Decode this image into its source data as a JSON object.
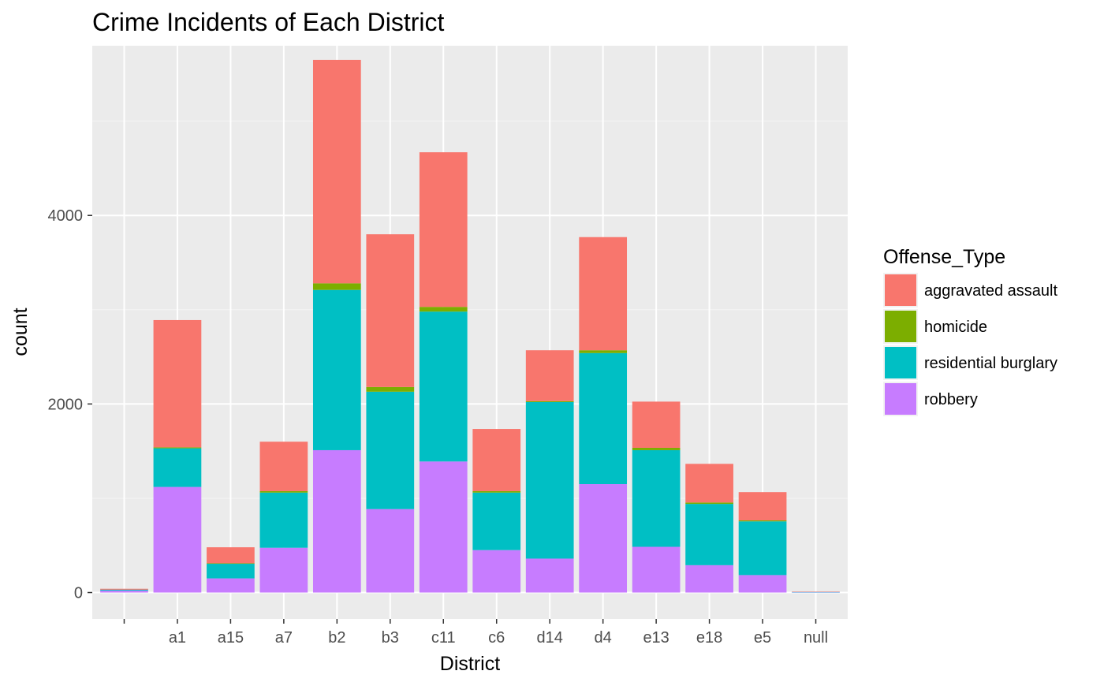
{
  "chart_data": {
    "type": "bar",
    "stacked": true,
    "title": "Crime Incidents of Each District",
    "xlabel": "District",
    "ylabel": "count",
    "ylim": [
      -280,
      5800
    ],
    "yticks": [
      0,
      2000,
      4000
    ],
    "grid": true,
    "legend_position": "right",
    "legend_title": "Offense_Type",
    "categories": [
      "",
      "a1",
      "a15",
      "a7",
      "b2",
      "b3",
      "c11",
      "c6",
      "d14",
      "d4",
      "e13",
      "e18",
      "e5",
      "null"
    ],
    "series": [
      {
        "name": "robbery",
        "color": "#C77CFF",
        "values": [
          20,
          1120,
          150,
          475,
          1510,
          885,
          1390,
          450,
          360,
          1150,
          485,
          290,
          185,
          3
        ]
      },
      {
        "name": "residential burglary",
        "color": "#00BFC4",
        "values": [
          10,
          410,
          155,
          585,
          1700,
          1245,
          1590,
          610,
          1660,
          1390,
          1025,
          650,
          570,
          3
        ]
      },
      {
        "name": "homicide",
        "color": "#7CAE00",
        "values": [
          0,
          10,
          5,
          15,
          70,
          50,
          50,
          15,
          10,
          30,
          25,
          15,
          10,
          0
        ]
      },
      {
        "name": "aggravated assault",
        "color": "#F8766D",
        "values": [
          10,
          1350,
          170,
          525,
          2370,
          1620,
          1640,
          660,
          540,
          1200,
          490,
          410,
          300,
          4
        ]
      }
    ],
    "legend_order": [
      "aggravated assault",
      "homicide",
      "residential burglary",
      "robbery"
    ]
  }
}
